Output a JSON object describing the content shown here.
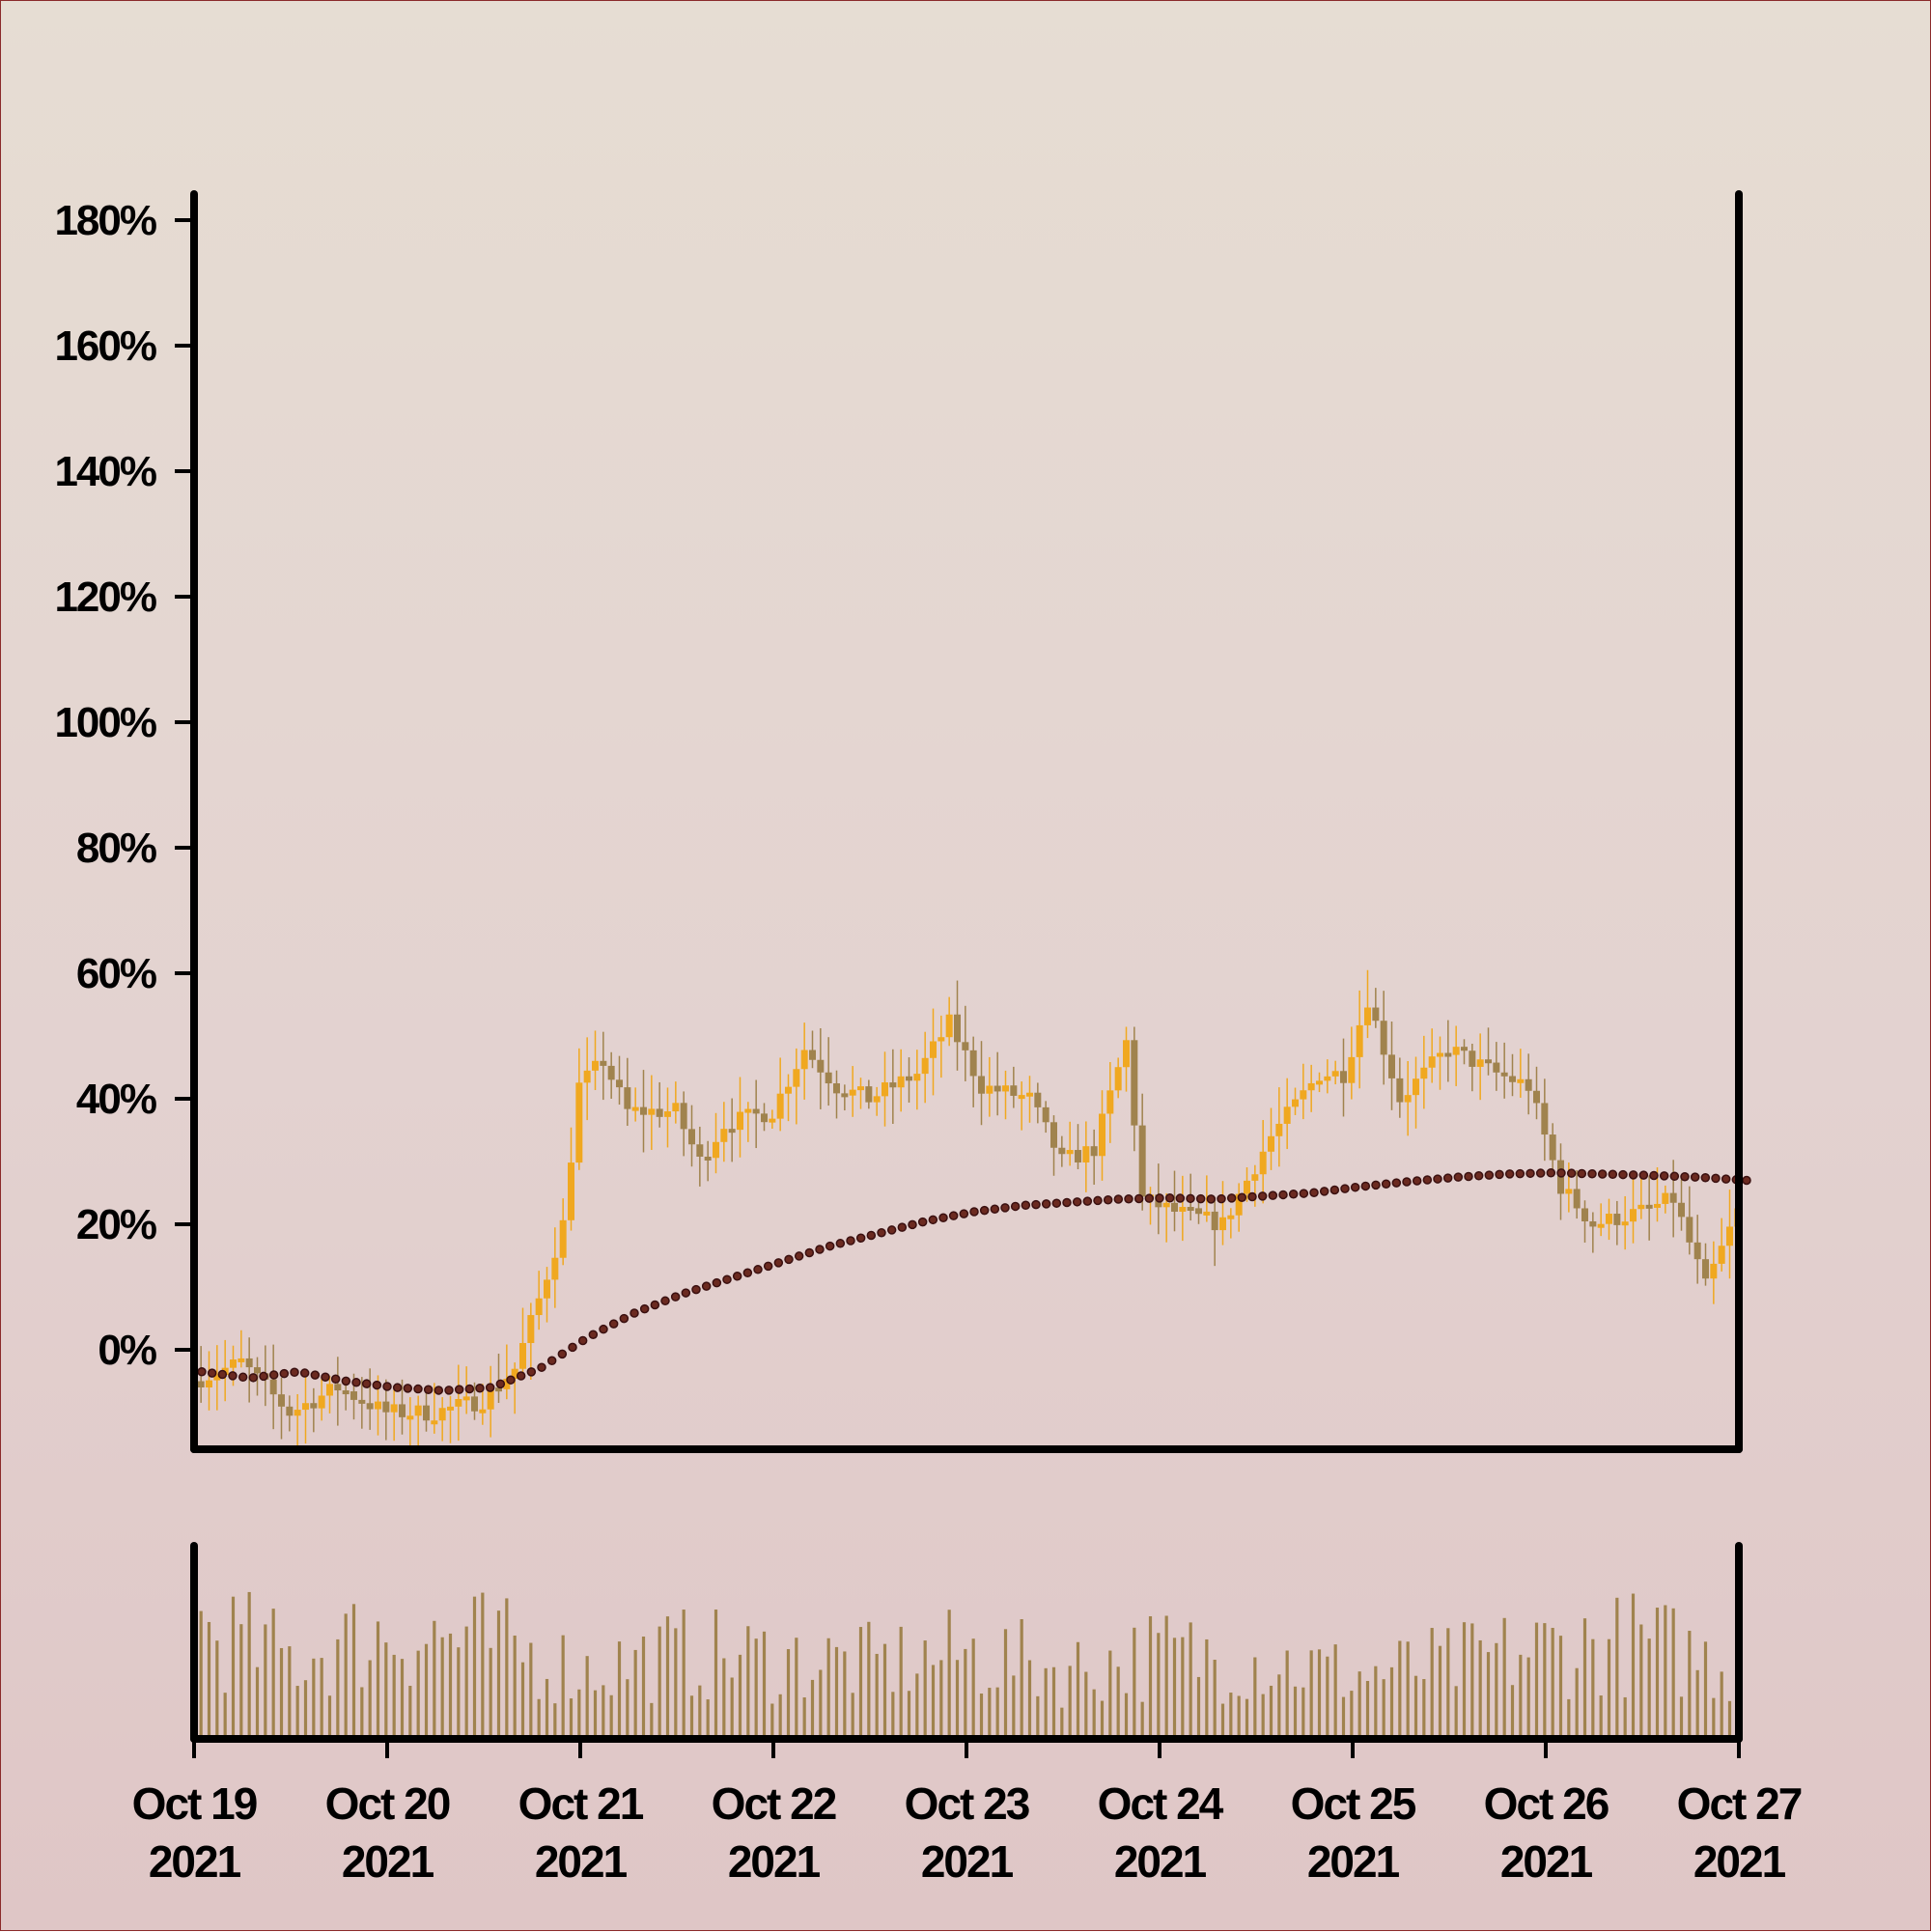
{
  "chart_data": [
    {
      "type": "candlestick",
      "title": "",
      "xlabel": "",
      "ylabel": "",
      "x_range": [
        "2021-10-19",
        "2021-10-27"
      ],
      "ylim": [
        -15,
        180
      ],
      "y_unit": "%",
      "grid": false,
      "legend": "none",
      "x_ticks": [
        {
          "date": "2021-10-19",
          "label": "Oct 19",
          "year": "2021"
        },
        {
          "date": "2021-10-20",
          "label": "Oct 20",
          "year": "2021"
        },
        {
          "date": "2021-10-21",
          "label": "Oct 21",
          "year": "2021"
        },
        {
          "date": "2021-10-22",
          "label": "Oct 22",
          "year": "2021"
        },
        {
          "date": "2021-10-23",
          "label": "Oct 23",
          "year": "2021"
        },
        {
          "date": "2021-10-24",
          "label": "Oct 24",
          "year": "2021"
        },
        {
          "date": "2021-10-25",
          "label": "Oct 25",
          "year": "2021"
        },
        {
          "date": "2021-10-26",
          "label": "Oct 26",
          "year": "2021"
        },
        {
          "date": "2021-10-27",
          "label": "Oct 27",
          "year": "2021"
        }
      ],
      "y_ticks": [
        {
          "value": 0,
          "label": "0%"
        },
        {
          "value": 20,
          "label": "20%"
        },
        {
          "value": 40,
          "label": "40%"
        },
        {
          "value": 60,
          "label": "60%"
        },
        {
          "value": 80,
          "label": "80%"
        },
        {
          "value": 100,
          "label": "100%"
        },
        {
          "value": 120,
          "label": "120%"
        },
        {
          "value": 140,
          "label": "140%"
        },
        {
          "value": 160,
          "label": "160%"
        },
        {
          "value": 180,
          "label": "180%"
        }
      ],
      "close_path": [
        [
          "2021-10-19T00:00",
          -5
        ],
        [
          "2021-10-19T06:00",
          -2
        ],
        [
          "2021-10-19T12:00",
          -10
        ],
        [
          "2021-10-19T18:00",
          -6
        ],
        [
          "2021-10-20T00:00",
          -10
        ],
        [
          "2021-10-20T06:00",
          -10
        ],
        [
          "2021-10-20T12:00",
          -8
        ],
        [
          "2021-10-20T16:00",
          -3
        ],
        [
          "2021-10-20T19:00",
          8
        ],
        [
          "2021-10-20T22:00",
          20
        ],
        [
          "2021-10-21T00:00",
          42
        ],
        [
          "2021-10-21T03:00",
          46
        ],
        [
          "2021-10-21T06:00",
          38
        ],
        [
          "2021-10-21T12:00",
          38
        ],
        [
          "2021-10-21T15:00",
          30
        ],
        [
          "2021-10-21T18:00",
          36
        ],
        [
          "2021-10-22T00:00",
          38
        ],
        [
          "2021-10-22T04:00",
          48
        ],
        [
          "2021-10-22T08:00",
          42
        ],
        [
          "2021-10-22T12:00",
          40
        ],
        [
          "2021-10-22T18:00",
          44
        ],
        [
          "2021-10-22T22:00",
          52
        ],
        [
          "2021-10-23T02:00",
          42
        ],
        [
          "2021-10-23T08:00",
          40
        ],
        [
          "2021-10-23T12:00",
          30
        ],
        [
          "2021-10-23T16:00",
          32
        ],
        [
          "2021-10-23T20:00",
          49
        ],
        [
          "2021-10-23T22:00",
          24
        ],
        [
          "2021-10-24T02:00",
          22
        ],
        [
          "2021-10-24T08:00",
          20
        ],
        [
          "2021-10-24T14:00",
          34
        ],
        [
          "2021-10-24T20:00",
          44
        ],
        [
          "2021-10-24T23:00",
          44
        ],
        [
          "2021-10-25T02:00",
          56
        ],
        [
          "2021-10-25T06:00",
          40
        ],
        [
          "2021-10-25T12:00",
          48
        ],
        [
          "2021-10-25T18:00",
          44
        ],
        [
          "2021-10-25T22:00",
          42
        ],
        [
          "2021-10-26T02:00",
          26
        ],
        [
          "2021-10-26T06:00",
          20
        ],
        [
          "2021-10-26T12:00",
          22
        ],
        [
          "2021-10-26T16:00",
          24
        ],
        [
          "2021-10-26T20:00",
          10
        ],
        [
          "2021-10-27T00:00",
          22
        ]
      ],
      "moving_average": [
        [
          "2021-10-19T00:00",
          -3.5
        ],
        [
          "2021-10-19T06:00",
          -4.5
        ],
        [
          "2021-10-19T12:00",
          -3.5
        ],
        [
          "2021-10-19T18:00",
          -5
        ],
        [
          "2021-10-20T00:00",
          -6
        ],
        [
          "2021-10-20T06:00",
          -6.5
        ],
        [
          "2021-10-20T12:00",
          -6
        ],
        [
          "2021-10-20T18:00",
          -3
        ],
        [
          "2021-10-21T00:00",
          2
        ],
        [
          "2021-10-21T06:00",
          6
        ],
        [
          "2021-10-21T12:00",
          9
        ],
        [
          "2021-10-21T18:00",
          11.5
        ],
        [
          "2021-10-22T00:00",
          14
        ],
        [
          "2021-10-22T06:00",
          16.5
        ],
        [
          "2021-10-22T12:00",
          18.5
        ],
        [
          "2021-10-22T18:00",
          20.5
        ],
        [
          "2021-10-23T00:00",
          22
        ],
        [
          "2021-10-23T06:00",
          23
        ],
        [
          "2021-10-23T12:00",
          23.5
        ],
        [
          "2021-10-23T18:00",
          24
        ],
        [
          "2021-10-24T00:00",
          24.2
        ],
        [
          "2021-10-24T06:00",
          24
        ],
        [
          "2021-10-24T12:00",
          24.5
        ],
        [
          "2021-10-24T18:00",
          25
        ],
        [
          "2021-10-25T00:00",
          26
        ],
        [
          "2021-10-25T06:00",
          26.8
        ],
        [
          "2021-10-25T12:00",
          27.5
        ],
        [
          "2021-10-25T18:00",
          28
        ],
        [
          "2021-10-26T00:00",
          28.2
        ],
        [
          "2021-10-26T06:00",
          28
        ],
        [
          "2021-10-26T12:00",
          27.8
        ],
        [
          "2021-10-26T18:00",
          27.5
        ],
        [
          "2021-10-27T00:00",
          27
        ]
      ],
      "volume_peaks_relative": [
        [
          "2021-10-19T00:00",
          1.0
        ],
        [
          "2021-10-19T12:00",
          0.7
        ],
        [
          "2021-10-20T00:00",
          0.95
        ],
        [
          "2021-10-20T12:00",
          0.85
        ],
        [
          "2021-10-21T00:00",
          0.6
        ],
        [
          "2021-10-21T12:00",
          0.75
        ],
        [
          "2021-10-22T00:00",
          0.7
        ],
        [
          "2021-10-22T12:00",
          0.65
        ],
        [
          "2021-10-23T00:00",
          0.75
        ],
        [
          "2021-10-23T12:00",
          0.6
        ],
        [
          "2021-10-24T00:00",
          0.75
        ],
        [
          "2021-10-24T12:00",
          0.7
        ],
        [
          "2021-10-25T00:00",
          0.55
        ],
        [
          "2021-10-25T12:00",
          0.65
        ],
        [
          "2021-10-26T00:00",
          0.8
        ],
        [
          "2021-10-26T12:00",
          0.85
        ],
        [
          "2021-10-27T00:00",
          0.6
        ]
      ],
      "colors": {
        "up": "#f0a820",
        "down": "#a0834e",
        "moving_average": "#3a1010",
        "volume": "#a0834e",
        "axis": "#000000"
      }
    }
  ]
}
